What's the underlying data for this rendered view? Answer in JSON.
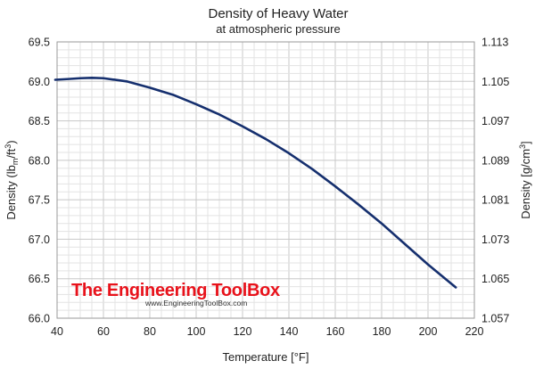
{
  "chart_data": {
    "type": "line",
    "title": "Density of Heavy Water",
    "subtitle": "at atmospheric pressure",
    "xlabel": "Temperature [°F]",
    "ylabel_left": {
      "pre": "Density (lb",
      "sub1": "m",
      "mid": "/ft",
      "sup": "3",
      "post": ")"
    },
    "ylabel_right": {
      "pre": "Density [g/cm",
      "sup": "3",
      "post": "]"
    },
    "xlim": [
      40,
      220
    ],
    "ylim": [
      66.0,
      69.5
    ],
    "ylim_right": [
      1.057,
      1.113
    ],
    "x_ticks": [
      40,
      60,
      80,
      100,
      120,
      140,
      160,
      180,
      200,
      220
    ],
    "x_tick_labels": [
      "40",
      "60",
      "80",
      "100",
      "120",
      "140",
      "160",
      "180",
      "200",
      "220"
    ],
    "y_ticks": [
      66.0,
      66.5,
      67.0,
      67.5,
      68.0,
      68.5,
      69.0,
      69.5
    ],
    "y_tick_labels": [
      "66.0",
      "66.5",
      "67.0",
      "67.5",
      "68.0",
      "68.5",
      "69.0",
      "69.5"
    ],
    "y_right_ticks": [
      1.057,
      1.065,
      1.073,
      1.081,
      1.089,
      1.097,
      1.105,
      1.113
    ],
    "y_right_tick_labels": [
      "1.057",
      "1.065",
      "1.073",
      "1.081",
      "1.089",
      "1.097",
      "1.105",
      "1.113"
    ],
    "grid": true,
    "series": [
      {
        "color": "#152f6e",
        "x": [
          39.2,
          45,
          50,
          55,
          60,
          70,
          80,
          90,
          100,
          110,
          120,
          130,
          140,
          150,
          160,
          170,
          180,
          190,
          200,
          212
        ],
        "y": [
          69.02,
          69.03,
          69.04,
          69.045,
          69.04,
          69.0,
          68.92,
          68.83,
          68.71,
          68.58,
          68.43,
          68.27,
          68.09,
          67.89,
          67.67,
          67.44,
          67.2,
          66.94,
          66.68,
          66.39
        ]
      }
    ]
  },
  "watermark": {
    "brand": "The Engineering ToolBox",
    "url": "www.EngineeringToolBox.com"
  }
}
